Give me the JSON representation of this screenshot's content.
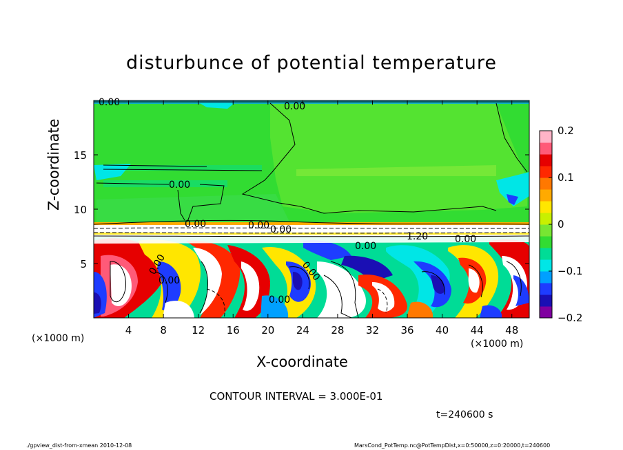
{
  "chart_data": {
    "type": "heatmap",
    "title": "disturbunce of potential temperature",
    "xlabel": "X-coordinate",
    "ylabel": "Z-coordinate",
    "x_unit_left": "(×1000 m)",
    "x_unit_right": "(×1000 m)",
    "xlim": [
      0,
      50
    ],
    "ylim": [
      0,
      20
    ],
    "x_ticks": [
      4,
      8,
      12,
      16,
      20,
      24,
      28,
      32,
      36,
      40,
      44,
      48
    ],
    "y_ticks": [
      5,
      10,
      15
    ],
    "colorbar": {
      "range": [
        -0.2,
        0.2
      ],
      "ticks": [
        {
          "value": 0.2,
          "label": "0.2"
        },
        {
          "value": 0.1,
          "label": "0.1"
        },
        {
          "value": 0,
          "label": "0"
        },
        {
          "value": -0.1,
          "label": "−0.1"
        },
        {
          "value": -0.2,
          "label": "−0.2"
        }
      ],
      "colors": [
        "#8000a0",
        "#1a0fb4",
        "#1e3cff",
        "#00a0ff",
        "#00e6e6",
        "#00dc96",
        "#32dc32",
        "#78e632",
        "#c8f000",
        "#ffe600",
        "#ffaa00",
        "#ff7800",
        "#ff2800",
        "#e60000",
        "#ff5a78",
        "#ffb4c8"
      ]
    },
    "contour_labels": [
      "0.00",
      "0.00",
      "0.00",
      "0.00",
      "0.00",
      "0.00",
      "0.00",
      "0.00",
      "0.00",
      "0.00",
      "0.00",
      "1.20",
      "0.00"
    ]
  },
  "contour_interval": "CONTOUR INTERVAL = 3.000E-01",
  "time_label": "t=240600 s",
  "footer_left": "./gpview_dist-from-xmean  2010-12-08",
  "footer_right": "MarsCond_PotTemp.nc@PotTempDist,x=0:50000,z=0:20000,t=240600"
}
